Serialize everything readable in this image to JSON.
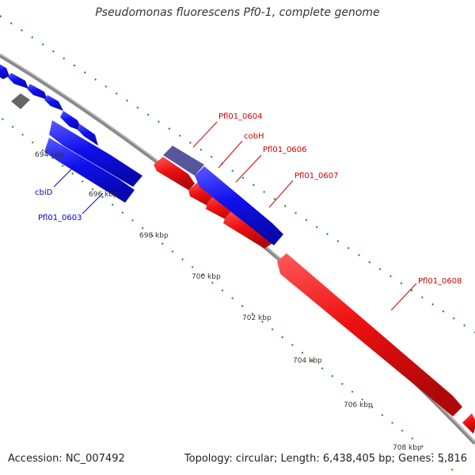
{
  "title": "Pseudomonas fluorescens Pf0-1, complete genome",
  "footer": {
    "accession": "Accession: NC_007492",
    "stats": "Topology: circular; Length: 6,438,405 bp; Genes: 5,816"
  },
  "ticks": [
    "694 kbp",
    "696 kbp",
    "698 kbp",
    "700 kbp",
    "702 kbp",
    "704 kbp",
    "706 kbp",
    "708 kbp"
  ],
  "genes": [
    {
      "label": "cbiD",
      "strand": "reverse",
      "color": "#1010ee"
    },
    {
      "label": "Pfl01_0603",
      "strand": "reverse",
      "color": "#1010ee"
    },
    {
      "label": "Pfl01_0604",
      "strand": "forward",
      "color": "#ee1010"
    },
    {
      "label": "cobH",
      "strand": "reverse",
      "color": "#1010ee"
    },
    {
      "label": "Pfl01_0606",
      "strand": "forward",
      "color": "#ee1010"
    },
    {
      "label": "Pfl01_0607",
      "strand": "forward",
      "color": "#ee1010"
    },
    {
      "label": "Pfl01_0608",
      "strand": "forward",
      "color": "#ee1010"
    }
  ],
  "colors": {
    "forward": "#ee1010",
    "reverse": "#1010ee",
    "backbone": "#888888",
    "gc_dots": "#1a8a1a",
    "other": "#666666"
  }
}
